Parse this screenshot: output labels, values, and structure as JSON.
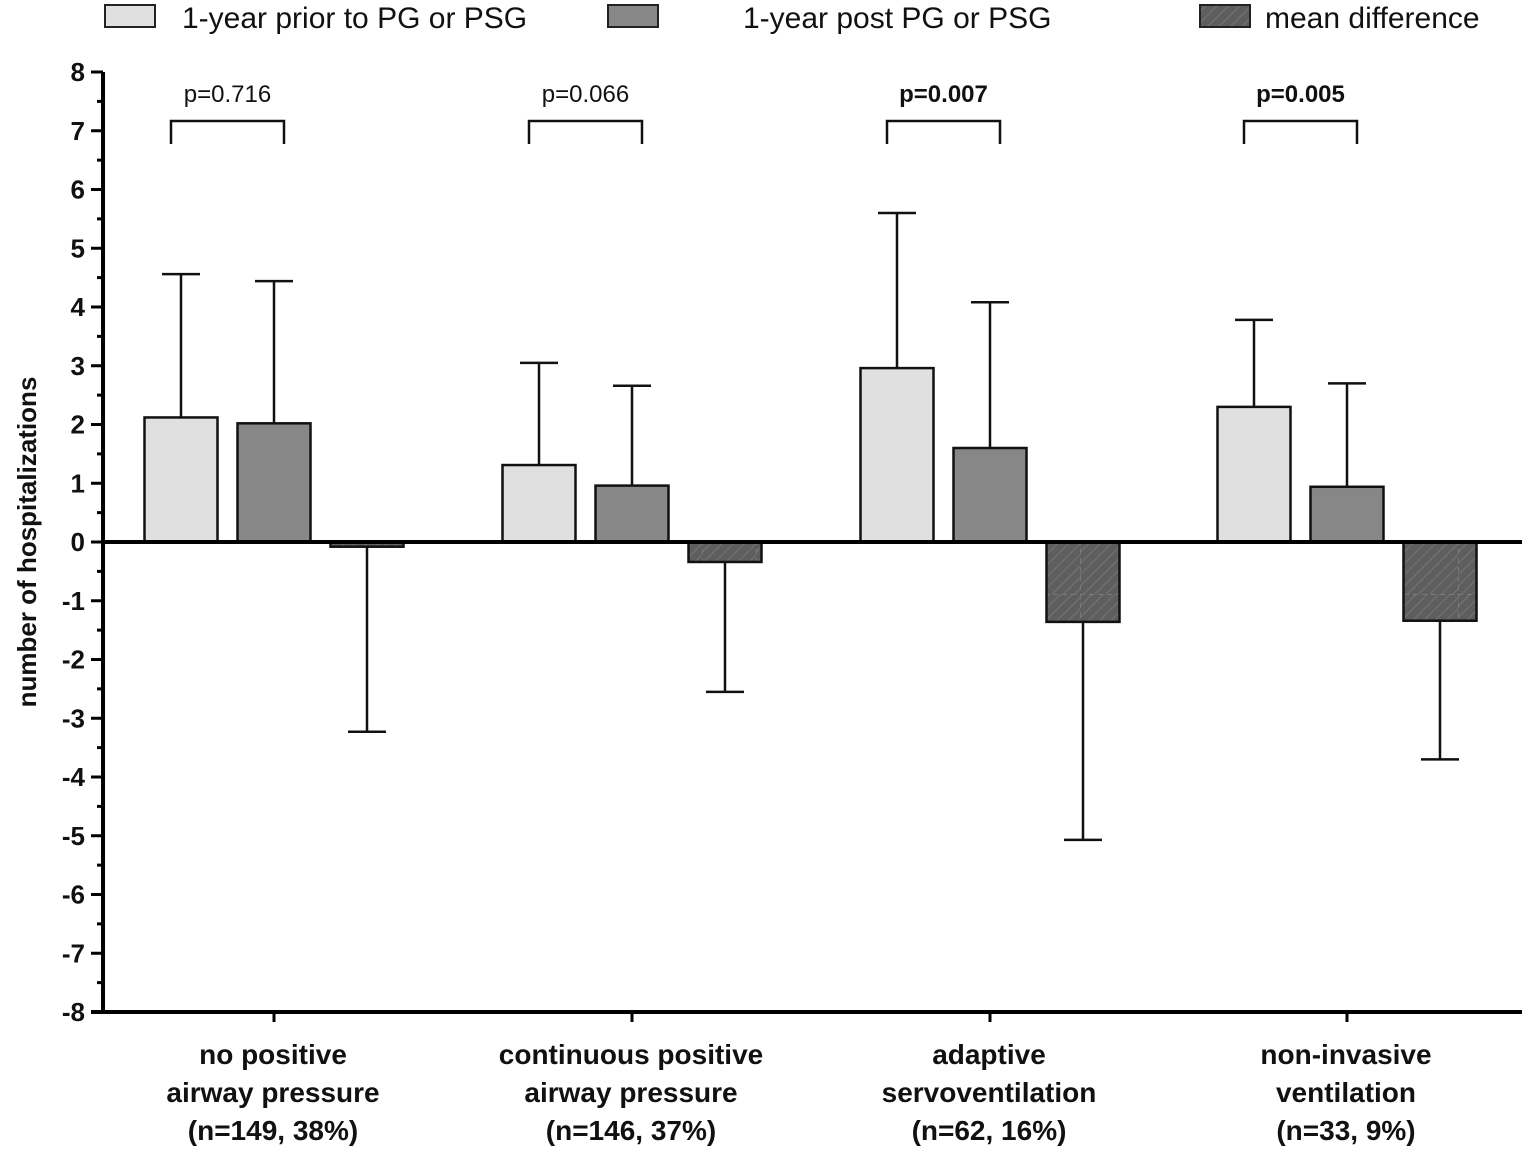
{
  "chart_data": {
    "type": "bar",
    "title": "",
    "xlabel": "",
    "ylabel": "number of hospitalizations",
    "ylim": [
      -8,
      8
    ],
    "yticks": [
      8,
      7,
      6,
      5,
      4,
      3,
      2,
      1,
      0,
      -1,
      -2,
      -3,
      -4,
      -5,
      -6,
      -7,
      -8
    ],
    "yticks_minor_step": 0.5,
    "grid": false,
    "legend_position": "top",
    "categories": [
      [
        "no positive",
        "airway pressure",
        "(n=149, 38%)"
      ],
      [
        "continuous positive",
        "airway pressure",
        "(n=146, 37%)"
      ],
      [
        "adaptive",
        "servoventilation",
        "(n=62, 16%)"
      ],
      [
        "non-invasive",
        "ventilation",
        "(n=33, 9%)"
      ]
    ],
    "series": [
      {
        "name": "1-year prior to PG or PSG",
        "color": "#e0e0e0",
        "pattern": "solid",
        "values": [
          2.12,
          1.31,
          2.96,
          2.3
        ],
        "error_upper": [
          4.56,
          3.05,
          5.6,
          3.78
        ]
      },
      {
        "name": "1-year post PG or PSG",
        "color": "#878787",
        "pattern": "solid",
        "values": [
          2.02,
          0.96,
          1.6,
          0.94
        ],
        "error_upper": [
          4.44,
          2.66,
          4.08,
          2.7
        ]
      },
      {
        "name": "mean difference",
        "color": "#5e5e5e",
        "pattern": "hatched",
        "values": [
          -0.08,
          -0.34,
          -1.36,
          -1.34
        ],
        "error_lower": [
          -3.23,
          -2.55,
          -5.07,
          -3.7
        ]
      }
    ],
    "annotations": [
      {
        "text": "p=0.716",
        "bold": false,
        "category": 0
      },
      {
        "text": "p=0.066",
        "bold": false,
        "category": 1
      },
      {
        "text": "p=0.007",
        "bold": true,
        "category": 2
      },
      {
        "text": "p=0.005",
        "bold": true,
        "category": 3
      }
    ]
  }
}
